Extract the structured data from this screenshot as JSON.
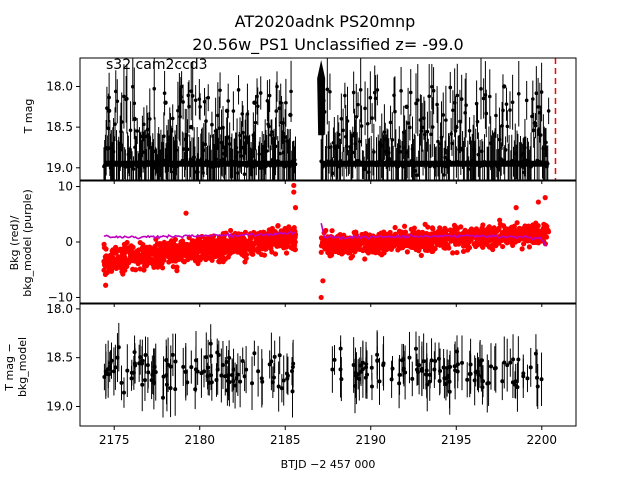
{
  "figure": {
    "title_line1": "AT2020adnk  PS20mnp",
    "title_line2": "20.56w_PS1 Unclassified z= -99.0",
    "xlabel": "BTJD −2 457 000",
    "x_ticks": [
      "2175",
      "2180",
      "2185",
      "2190",
      "2195",
      "2200"
    ]
  },
  "chart_data": [
    {
      "panel": "top",
      "type": "scatter",
      "annotation": "s32 cam2ccd3",
      "ylabel": "T mag",
      "y_inverted": true,
      "ylim": [
        19.15,
        17.65
      ],
      "xlim": [
        2173.0,
        2202.0
      ],
      "y_ticks": [
        "18.0",
        "18.5",
        "19.0"
      ],
      "series": [
        {
          "color": "#000000",
          "marker": "circle",
          "errorbars": true,
          "segments": [
            {
              "x_range": [
                2174.4,
                2185.6
              ],
              "baseline_mag": 18.95,
              "scatter_mag": [
                18.0,
                19.1
              ]
            },
            {
              "x_range": [
                2187.1,
                2200.4
              ],
              "baseline_mag": 18.95,
              "scatter_mag": [
                18.0,
                19.1
              ]
            }
          ],
          "sample_points": [
            {
              "x": 2174.7,
              "y": 18.3
            },
            {
              "x": 2176.2,
              "y": 18.4
            },
            {
              "x": 2178.0,
              "y": 18.2
            },
            {
              "x": 2179.5,
              "y": 18.5
            },
            {
              "x": 2181.6,
              "y": 18.3
            },
            {
              "x": 2183.2,
              "y": 18.2
            },
            {
              "x": 2185.3,
              "y": 18.35
            },
            {
              "x": 2187.1,
              "y": 17.85
            },
            {
              "x": 2189.0,
              "y": 18.6
            },
            {
              "x": 2192.1,
              "y": 18.25
            },
            {
              "x": 2195.0,
              "y": 18.5
            },
            {
              "x": 2197.8,
              "y": 18.0
            },
            {
              "x": 2199.6,
              "y": 18.45
            }
          ]
        },
        {
          "color": "#ff0000",
          "style": "dashed-vertical-line",
          "x": 2200.8
        }
      ]
    },
    {
      "panel": "middle",
      "type": "scatter",
      "ylabel_line1": "Bkg (red)/",
      "ylabel_line2": "bkg_model (purple)",
      "ylim": [
        -11.0,
        11.0
      ],
      "xlim": [
        2173.0,
        2202.0
      ],
      "y_ticks": [
        "10",
        "0",
        "−10"
      ],
      "series": [
        {
          "color": "#ff0000",
          "marker": "circle",
          "segments": [
            {
              "x_range": [
                2174.4,
                2185.6
              ],
              "start_level": -3.5,
              "end_level": 0.8,
              "scatter": 2.2
            },
            {
              "x_range": [
                2187.1,
                2200.4
              ],
              "start_level": -0.5,
              "end_level": 1.5,
              "scatter": 2.0
            }
          ],
          "outliers": [
            {
              "x": 2185.5,
              "y": 10.2
            },
            {
              "x": 2185.5,
              "y": 9.0
            },
            {
              "x": 2185.6,
              "y": 6.2
            },
            {
              "x": 2187.1,
              "y": -10.0
            },
            {
              "x": 2187.2,
              "y": -7.0
            },
            {
              "x": 2179.2,
              "y": 5.2
            },
            {
              "x": 2198.5,
              "y": 6.2
            },
            {
              "x": 2199.8,
              "y": 7.2
            },
            {
              "x": 2200.2,
              "y": 8.0
            },
            {
              "x": 2174.5,
              "y": -7.8
            }
          ]
        },
        {
          "color": "#bf00bf",
          "style": "line",
          "segments": [
            {
              "x": [
                2174.4,
                2176.0,
                2178.0,
                2180.0,
                2182.0,
                2184.0,
                2185.6
              ],
              "y": [
                1.0,
                0.8,
                1.0,
                1.1,
                1.2,
                1.4,
                1.6
              ]
            },
            {
              "x": [
                2187.1,
                2187.3,
                2190.0,
                2193.0,
                2196.0,
                2199.0,
                2200.0,
                2200.3
              ],
              "y": [
                3.5,
                0.8,
                0.9,
                1.0,
                1.1,
                0.9,
                0.5,
                -1.0
              ]
            }
          ]
        }
      ]
    },
    {
      "panel": "bottom",
      "type": "scatter",
      "ylabel_line1": "T mag −",
      "ylabel_line2": "bkg_model",
      "y_inverted": true,
      "ylim": [
        19.2,
        17.95
      ],
      "xlim": [
        2173.0,
        2202.0
      ],
      "y_ticks": [
        "18.0",
        "18.5",
        "19.0"
      ],
      "series": [
        {
          "color": "#000000",
          "marker": "circle",
          "errorbars": true,
          "segments": [
            {
              "x_range": [
                2174.4,
                2185.6
              ],
              "center_mag": 18.65,
              "scatter": 0.22
            },
            {
              "x_range": [
                2187.4,
                2200.0
              ],
              "center_mag": 18.65,
              "scatter": 0.22
            }
          ]
        }
      ]
    }
  ]
}
